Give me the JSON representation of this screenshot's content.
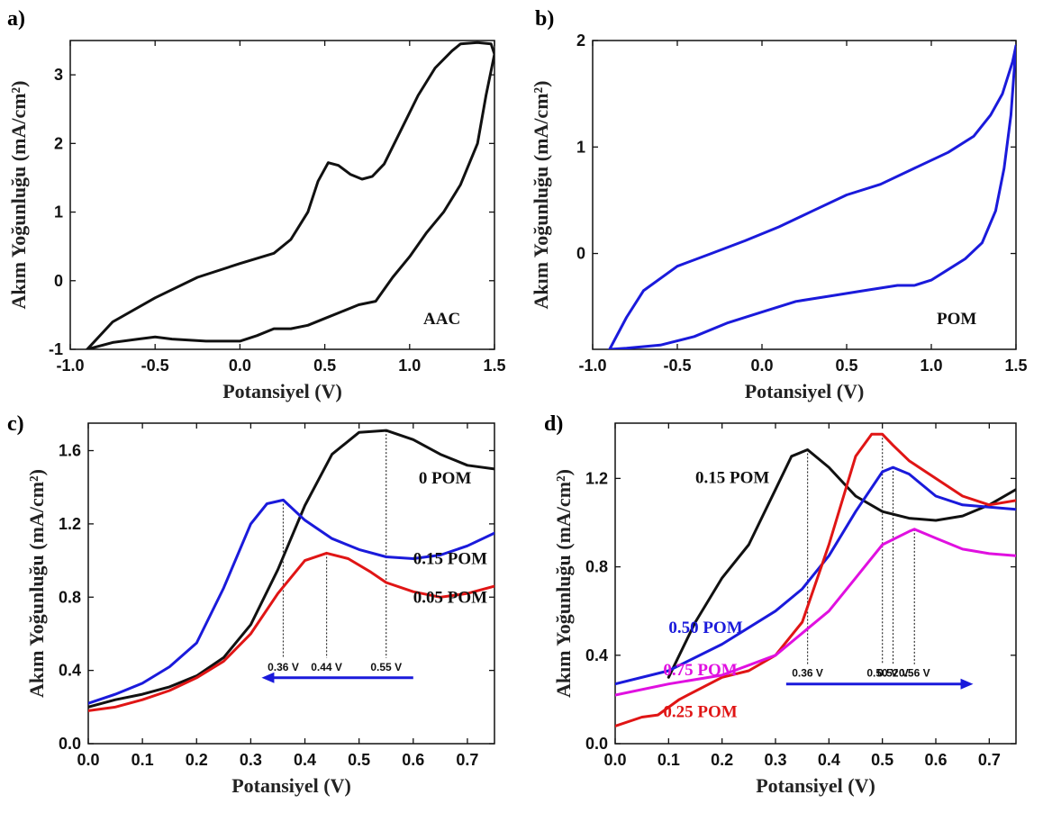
{
  "chart_data": [
    {
      "panel": "a)",
      "type": "line",
      "inset_label": "AAC",
      "xlabel": "Potansiyel (V)",
      "ylabel": "Akım Yoğunluğu (mA/cm²)",
      "xlim": [
        -1.0,
        1.5
      ],
      "ylim": [
        -1.0,
        3.5
      ],
      "xticks": [
        -1.0,
        -0.5,
        0.0,
        0.5,
        1.0,
        1.5
      ],
      "xtick_labels": [
        "-1.0",
        "-0.5",
        "0.0",
        "0.5",
        "1.0",
        "1.5"
      ],
      "yticks": [
        -1,
        0,
        1,
        2,
        3
      ],
      "ytick_labels": [
        "-1",
        "0",
        "1",
        "2",
        "3"
      ],
      "series": [
        {
          "color": "#111111",
          "x": [
            -0.9,
            -0.75,
            -0.5,
            -0.25,
            0.0,
            0.2,
            0.3,
            0.4,
            0.46,
            0.52,
            0.58,
            0.65,
            0.72,
            0.78,
            0.85,
            0.95,
            1.05,
            1.15,
            1.25,
            1.3,
            1.4,
            1.48,
            1.5
          ],
          "y": [
            -1.0,
            -0.6,
            -0.25,
            0.05,
            0.25,
            0.4,
            0.6,
            1.0,
            1.45,
            1.72,
            1.68,
            1.55,
            1.48,
            1.52,
            1.7,
            2.2,
            2.7,
            3.1,
            3.35,
            3.45,
            3.47,
            3.45,
            3.3
          ]
        },
        {
          "color": "#111111",
          "x": [
            1.5,
            1.45,
            1.4,
            1.3,
            1.2,
            1.1,
            1.0,
            0.9,
            0.8,
            0.7,
            0.6,
            0.5,
            0.4,
            0.3,
            0.2,
            0.1,
            0.0,
            -0.2,
            -0.4,
            -0.5,
            -0.6,
            -0.75,
            -0.9
          ],
          "y": [
            3.3,
            2.7,
            2.0,
            1.4,
            1.0,
            0.7,
            0.35,
            0.05,
            -0.3,
            -0.35,
            -0.45,
            -0.55,
            -0.65,
            -0.7,
            -0.7,
            -0.8,
            -0.88,
            -0.88,
            -0.85,
            -0.82,
            -0.85,
            -0.9,
            -1.0
          ]
        }
      ],
      "annotations": [],
      "arrow": null
    },
    {
      "panel": "b)",
      "type": "line",
      "inset_label": "POM",
      "xlabel": "Potansiyel (V)",
      "ylabel": "Akım Yoğunluğu (mA/cm²)",
      "xlim": [
        -1.0,
        1.5
      ],
      "ylim": [
        -0.9,
        2.0
      ],
      "xticks": [
        -1.0,
        -0.5,
        0.0,
        0.5,
        1.0,
        1.5
      ],
      "xtick_labels": [
        "-1.0",
        "-0.5",
        "0.0",
        "0.5",
        "1.0",
        "1.5"
      ],
      "yticks": [
        0,
        1,
        2
      ],
      "ytick_labels": [
        "0",
        "1",
        "2"
      ],
      "series": [
        {
          "color": "#1a1adb",
          "x": [
            -0.9,
            -0.8,
            -0.7,
            -0.5,
            -0.3,
            -0.1,
            0.1,
            0.3,
            0.5,
            0.7,
            0.9,
            1.1,
            1.25,
            1.35,
            1.42,
            1.48,
            1.5
          ],
          "y": [
            -0.9,
            -0.6,
            -0.35,
            -0.12,
            0.0,
            0.12,
            0.25,
            0.4,
            0.55,
            0.65,
            0.8,
            0.95,
            1.1,
            1.3,
            1.5,
            1.8,
            1.95
          ]
        },
        {
          "color": "#1a1adb",
          "x": [
            1.5,
            1.47,
            1.43,
            1.38,
            1.3,
            1.2,
            1.1,
            1.0,
            0.9,
            0.8,
            0.6,
            0.4,
            0.2,
            0.0,
            -0.2,
            -0.4,
            -0.6,
            -0.8,
            -0.9
          ],
          "y": [
            1.95,
            1.3,
            0.8,
            0.4,
            0.1,
            -0.05,
            -0.15,
            -0.25,
            -0.3,
            -0.3,
            -0.35,
            -0.4,
            -0.45,
            -0.55,
            -0.65,
            -0.78,
            -0.86,
            -0.89,
            -0.9
          ]
        }
      ],
      "annotations": [],
      "arrow": null
    },
    {
      "panel": "c)",
      "type": "line",
      "inset_label": "",
      "xlabel": "Potansiyel (V)",
      "ylabel": "Akım Yoğunluğu (mA/cm²)",
      "xlim": [
        0.0,
        0.75
      ],
      "ylim": [
        0.0,
        1.75
      ],
      "xticks": [
        0.0,
        0.1,
        0.2,
        0.3,
        0.4,
        0.5,
        0.6,
        0.7
      ],
      "xtick_labels": [
        "0.0",
        "0.1",
        "0.2",
        "0.3",
        "0.4",
        "0.5",
        "0.6",
        "0.7"
      ],
      "yticks": [
        0.0,
        0.4,
        0.8,
        1.2,
        1.6
      ],
      "ytick_labels": [
        "0.0",
        "0.4",
        "0.8",
        "1.2",
        "1.6"
      ],
      "series": [
        {
          "name": "0 POM",
          "color": "#111111",
          "label_pos": [
            0.61,
            1.42
          ],
          "x": [
            0.0,
            0.05,
            0.1,
            0.15,
            0.2,
            0.25,
            0.3,
            0.35,
            0.4,
            0.45,
            0.5,
            0.55,
            0.6,
            0.65,
            0.7,
            0.75
          ],
          "y": [
            0.2,
            0.24,
            0.27,
            0.31,
            0.37,
            0.47,
            0.65,
            0.95,
            1.3,
            1.58,
            1.7,
            1.71,
            1.66,
            1.58,
            1.52,
            1.5
          ]
        },
        {
          "name": "0.15 POM",
          "color": "#1a1adb",
          "label_pos": [
            0.6,
            0.98
          ],
          "x": [
            0.0,
            0.05,
            0.1,
            0.15,
            0.2,
            0.25,
            0.3,
            0.33,
            0.36,
            0.4,
            0.45,
            0.5,
            0.55,
            0.6,
            0.65,
            0.7,
            0.75
          ],
          "y": [
            0.22,
            0.27,
            0.33,
            0.42,
            0.55,
            0.85,
            1.2,
            1.31,
            1.33,
            1.22,
            1.12,
            1.06,
            1.02,
            1.01,
            1.03,
            1.08,
            1.15
          ]
        },
        {
          "name": "0.05 POM",
          "color": "#e01515",
          "label_pos": [
            0.6,
            0.77
          ],
          "x": [
            0.0,
            0.05,
            0.1,
            0.15,
            0.2,
            0.25,
            0.3,
            0.35,
            0.4,
            0.44,
            0.48,
            0.52,
            0.55,
            0.6,
            0.65,
            0.7,
            0.75
          ],
          "y": [
            0.18,
            0.2,
            0.24,
            0.29,
            0.36,
            0.45,
            0.6,
            0.82,
            1.0,
            1.04,
            1.01,
            0.94,
            0.88,
            0.83,
            0.8,
            0.82,
            0.86
          ]
        }
      ],
      "annotations": [
        {
          "x": 0.36,
          "y_top": 1.33,
          "label": "0.36 V"
        },
        {
          "x": 0.44,
          "y_top": 1.04,
          "label": "0.44 V"
        },
        {
          "x": 0.55,
          "y_top": 1.71,
          "label": "0.55 V"
        }
      ],
      "arrow": {
        "from": 0.6,
        "to": 0.32,
        "y": 0.36,
        "color": "#1a1adb"
      }
    },
    {
      "panel": "d)",
      "type": "line",
      "inset_label": "",
      "xlabel": "Potansiyel (V)",
      "ylabel": "Akım Yoğunluğu (mA/cm²)",
      "xlim": [
        0.0,
        0.75
      ],
      "ylim": [
        0.0,
        1.45
      ],
      "xticks": [
        0.0,
        0.1,
        0.2,
        0.3,
        0.4,
        0.5,
        0.6,
        0.7
      ],
      "xtick_labels": [
        "0.0",
        "0.1",
        "0.2",
        "0.3",
        "0.4",
        "0.5",
        "0.6",
        "0.7"
      ],
      "yticks": [
        0.0,
        0.4,
        0.8,
        1.2
      ],
      "ytick_labels": [
        "0.0",
        "0.4",
        "0.8",
        "1.2"
      ],
      "series": [
        {
          "name": "0.15 POM",
          "color": "#111111",
          "label_pos": [
            0.15,
            1.18
          ],
          "x": [
            0.1,
            0.15,
            0.2,
            0.25,
            0.3,
            0.33,
            0.36,
            0.4,
            0.45,
            0.5,
            0.55,
            0.6,
            0.65,
            0.7,
            0.75
          ],
          "y": [
            0.3,
            0.55,
            0.75,
            0.9,
            1.15,
            1.3,
            1.33,
            1.25,
            1.12,
            1.05,
            1.02,
            1.01,
            1.03,
            1.08,
            1.15
          ]
        },
        {
          "name": "0.50 POM",
          "color": "#1a1adb",
          "label_pos": [
            0.1,
            0.5
          ],
          "x": [
            0.0,
            0.1,
            0.2,
            0.3,
            0.35,
            0.4,
            0.45,
            0.5,
            0.52,
            0.55,
            0.6,
            0.65,
            0.7,
            0.75
          ],
          "y": [
            0.27,
            0.33,
            0.45,
            0.6,
            0.7,
            0.85,
            1.05,
            1.23,
            1.25,
            1.22,
            1.12,
            1.08,
            1.07,
            1.06
          ]
        },
        {
          "name": "0.75 POM",
          "color": "#e01515",
          "label_pos": [
            0.09,
            0.31
          ],
          "x": [
            0.0,
            0.05,
            0.08,
            0.12,
            0.2,
            0.25,
            0.3,
            0.35,
            0.4,
            0.45,
            0.48,
            0.5,
            0.52,
            0.55,
            0.6,
            0.65,
            0.7,
            0.75
          ],
          "y": [
            0.08,
            0.12,
            0.13,
            0.2,
            0.3,
            0.33,
            0.4,
            0.55,
            0.9,
            1.3,
            1.4,
            1.4,
            1.35,
            1.28,
            1.2,
            1.12,
            1.08,
            1.1
          ]
        },
        {
          "name": "0.25 POM",
          "color": "#e010e0",
          "label_pos": [
            0.09,
            0.12
          ],
          "x": [
            0.0,
            0.1,
            0.2,
            0.3,
            0.4,
            0.45,
            0.5,
            0.55,
            0.56,
            0.6,
            0.65,
            0.7,
            0.75
          ],
          "y": [
            0.22,
            0.27,
            0.31,
            0.4,
            0.6,
            0.75,
            0.9,
            0.96,
            0.97,
            0.93,
            0.88,
            0.86,
            0.85
          ]
        }
      ],
      "label_text_colors": [
        "#111111",
        "#1a1adb",
        "#e010e0",
        "#e01515"
      ],
      "annotations": [
        {
          "x": 0.36,
          "y_top": 1.33,
          "label": "0.36 V"
        },
        {
          "x": 0.5,
          "y_top": 1.4,
          "label": "0.50 V"
        },
        {
          "x": 0.52,
          "y_top": 1.25,
          "label": "0.52 V"
        },
        {
          "x": 0.56,
          "y_top": 0.97,
          "label": "0.56 V"
        }
      ],
      "arrow": {
        "from": 0.32,
        "to": 0.67,
        "y": 0.27,
        "color": "#1a1adb"
      }
    }
  ]
}
